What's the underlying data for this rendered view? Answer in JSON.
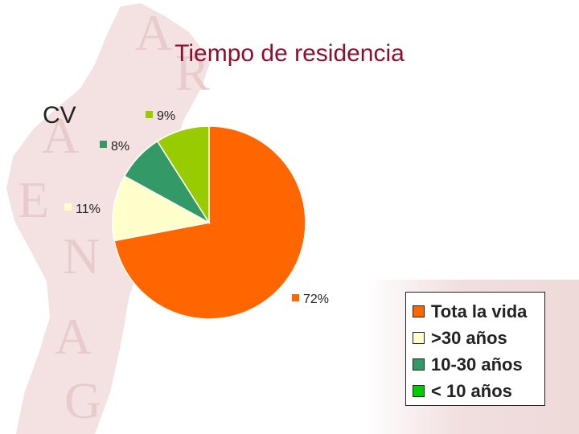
{
  "page": {
    "region_label": "CV"
  },
  "chart_data": {
    "type": "pie",
    "title": "Tiempo de residencia",
    "categories": [
      "Tota la vida",
      ">30 años",
      "10-30 años",
      "< 10 años"
    ],
    "values": [
      72,
      11,
      8,
      9
    ],
    "value_labels": [
      "72%",
      "11%",
      "8%",
      "9%"
    ],
    "colors": [
      "#ff6600",
      "#ffffcc",
      "#339966",
      "#99cc00"
    ],
    "legend": {
      "placement": "bottom-right",
      "entries": [
        {
          "label": "Tota la vida",
          "color": "#ff6600"
        },
        {
          "label": ">30 años",
          "color": "#ffffcc"
        },
        {
          "label": "10-30 años",
          "color": "#339966"
        },
        {
          "label": "< 10 años",
          "color": "#00cc00"
        }
      ]
    }
  },
  "colors": {
    "title": "#8c0f2e",
    "watermark": "#f0dada"
  }
}
